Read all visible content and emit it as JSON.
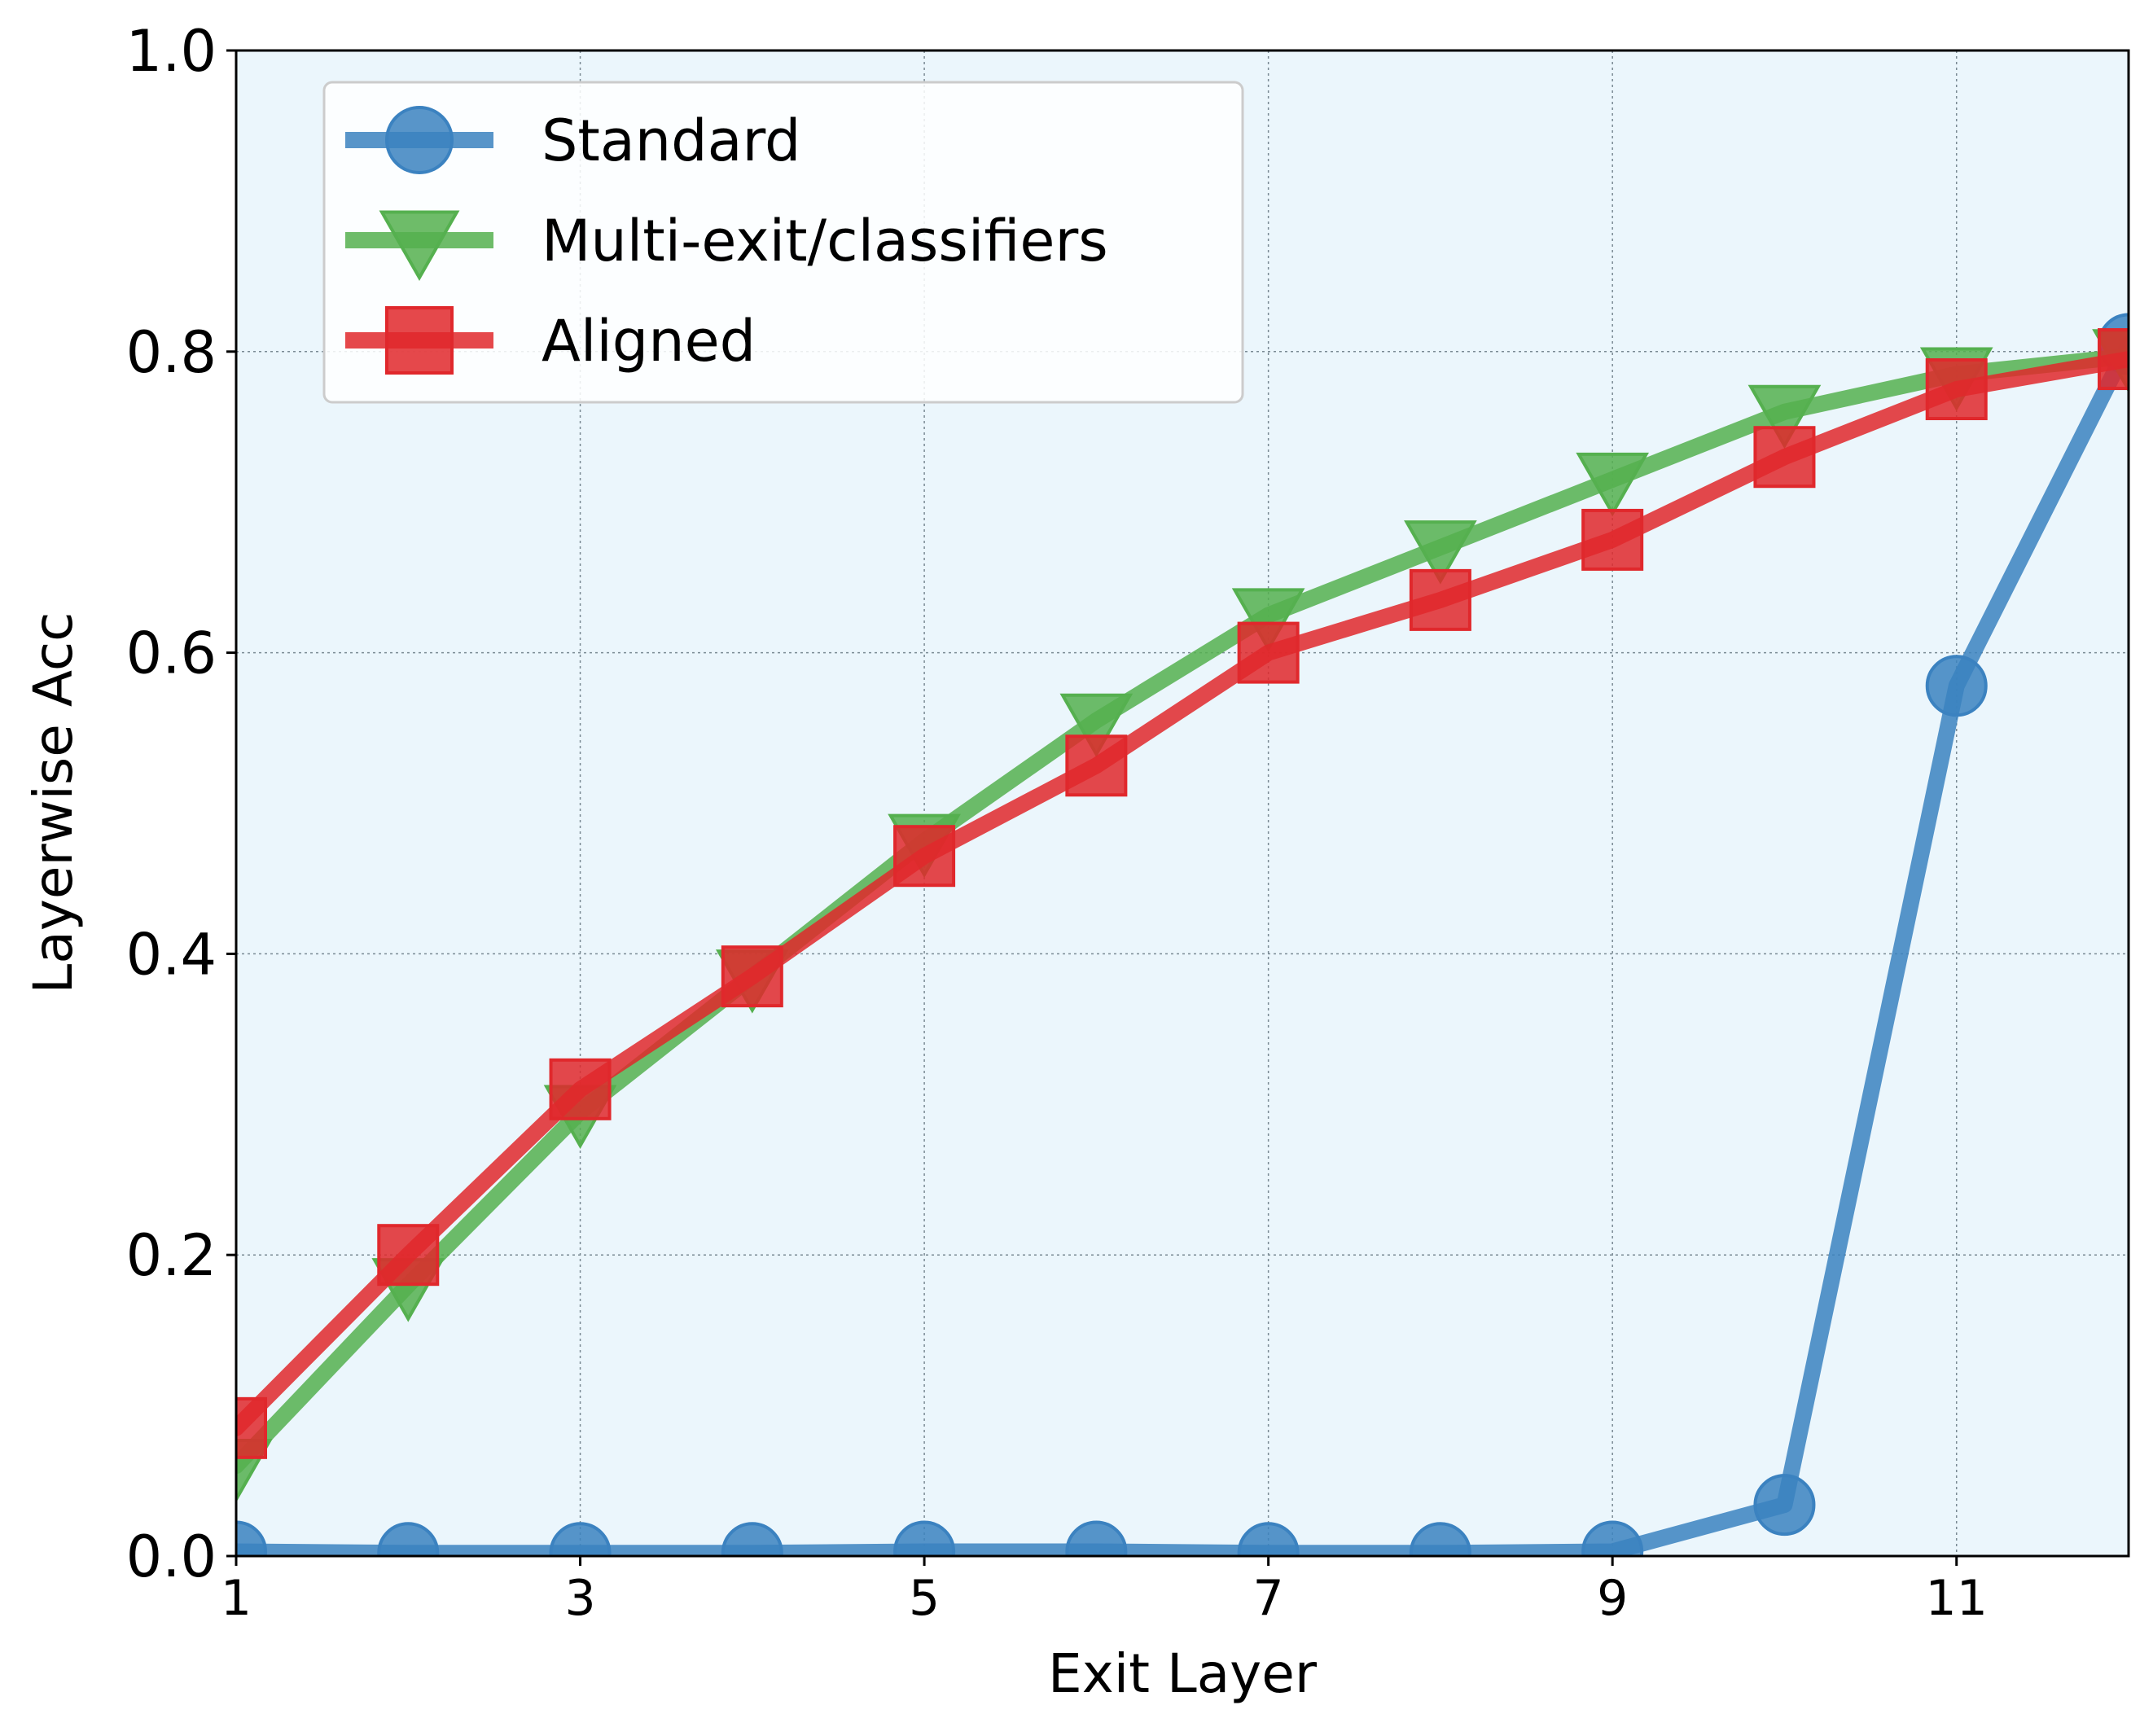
{
  "chart_data": {
    "type": "line",
    "xlabel": "Exit Layer",
    "ylabel": "Layerwise Acc",
    "xlim": [
      1,
      12
    ],
    "ylim": [
      0,
      1.0
    ],
    "x_ticks": [
      "1",
      "3",
      "5",
      "7",
      "9",
      "11"
    ],
    "y_ticks": [
      "0.0",
      "0.2",
      "0.4",
      "0.6",
      "0.8",
      "1.0"
    ],
    "grid": true,
    "legend_position": "upper-left",
    "plot_background": "#ebf6fc",
    "x": [
      1,
      2,
      3,
      4,
      5,
      6,
      7,
      8,
      9,
      10,
      11,
      12
    ],
    "series": [
      {
        "name": "Standard",
        "color": "#3b82c0",
        "marker": "circle",
        "values": [
          0.003,
          0.002,
          0.002,
          0.002,
          0.003,
          0.003,
          0.002,
          0.002,
          0.003,
          0.034,
          0.578,
          0.805
        ]
      },
      {
        "name": "Multi-exit/classifiers",
        "color": "#55b04f",
        "marker": "triangle-down",
        "values": [
          0.06,
          0.18,
          0.295,
          0.385,
          0.475,
          0.555,
          0.625,
          0.67,
          0.715,
          0.76,
          0.785,
          0.797
        ]
      },
      {
        "name": "Aligned",
        "color": "#e0282c",
        "marker": "square",
        "values": [
          0.085,
          0.2,
          0.31,
          0.385,
          0.465,
          0.525,
          0.6,
          0.635,
          0.675,
          0.73,
          0.775,
          0.795
        ]
      }
    ]
  }
}
